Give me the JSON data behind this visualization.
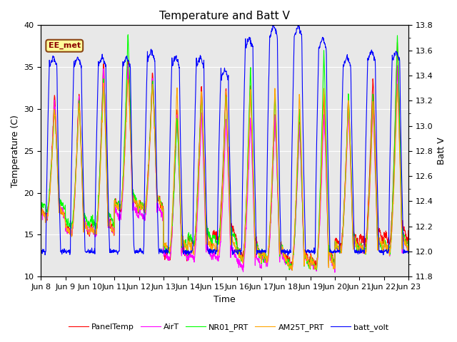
{
  "title": "Temperature and Batt V",
  "xlabel": "Time",
  "ylabel_left": "Temperature (C)",
  "ylabel_right": "Batt V",
  "ylim_left": [
    10,
    40
  ],
  "ylim_right": [
    11.8,
    13.8
  ],
  "xtick_labels": [
    "Jun 8",
    "Jun 9",
    "Jun 10",
    "Jun 11",
    "Jun 12",
    "Jun 13",
    "Jun 14",
    "Jun 15",
    "Jun 16",
    "Jun 17",
    "Jun 18",
    "Jun 19",
    "Jun 20",
    "Jun 21",
    "Jun 22",
    "Jun 23"
  ],
  "annotation_text": "EE_met",
  "annotation_box_color": "#FFFF99",
  "annotation_box_edge": "#8B4513",
  "background_color": "#E8E8E8",
  "colors": {
    "PanelTemp": "#FF0000",
    "AirT": "#FF00FF",
    "NR01_PRT": "#00FF00",
    "AM25T_PRT": "#FFA500",
    "batt_volt": "#0000FF"
  },
  "legend_entries": [
    "PanelTemp",
    "AirT",
    "NR01_PRT",
    "AM25T_PRT",
    "batt_volt"
  ],
  "n_days": 15,
  "samples_per_day": 96,
  "title_fontsize": 11,
  "label_fontsize": 9,
  "tick_fontsize": 8,
  "panel_temp_daily_max": [
    32,
    32,
    36,
    36,
    34.5,
    30,
    33,
    33,
    33,
    29.5,
    28.5,
    31.5,
    31.5,
    34,
    38
  ],
  "panel_temp_daily_min": [
    17,
    15,
    15,
    18,
    18,
    12,
    14,
    14.5,
    12.5,
    12,
    11.5,
    11.5,
    13.5,
    14,
    14
  ],
  "air_temp_daily_max": [
    31,
    31.5,
    35,
    35,
    34,
    29.5,
    29.5,
    29,
    29,
    29.5,
    28,
    29.5,
    30,
    30,
    35
  ],
  "air_temp_daily_min": [
    17,
    15,
    15,
    17,
    17,
    12,
    12,
    12,
    11,
    11.5,
    11,
    11,
    13,
    13,
    13
  ],
  "nr01_daily_max": [
    30,
    31,
    34,
    39,
    34,
    29,
    32,
    32,
    35,
    32,
    30,
    37,
    32,
    32,
    39
  ],
  "nr01_daily_min": [
    18,
    16,
    16,
    18,
    18,
    13,
    14,
    14,
    12,
    12,
    11,
    11,
    13,
    13,
    13
  ],
  "am25_daily_max": [
    30,
    31,
    33,
    34,
    33,
    32.5,
    32,
    32,
    32.5,
    32.5,
    32,
    32.5,
    31,
    31,
    33
  ],
  "am25_daily_min": [
    17,
    15,
    15,
    18,
    18,
    13,
    13,
    13,
    12,
    12,
    11,
    11,
    13,
    13,
    13
  ],
  "batt_daily_max": [
    13.55,
    13.55,
    13.55,
    13.55,
    13.6,
    13.55,
    13.55,
    13.45,
    13.7,
    13.8,
    13.8,
    13.7,
    13.55,
    13.6,
    13.6
  ],
  "batt_daily_min": [
    12.0,
    12.0,
    12.0,
    12.0,
    12.0,
    12.0,
    12.0,
    12.0,
    12.0,
    12.0,
    12.0,
    12.0,
    12.0,
    12.0,
    12.0
  ]
}
